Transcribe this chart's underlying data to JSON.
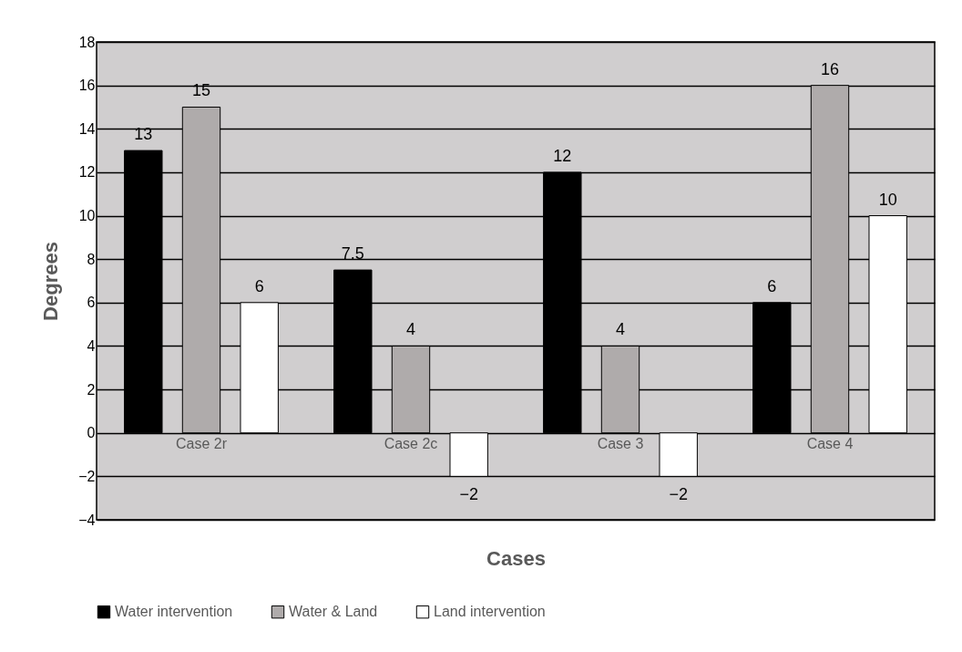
{
  "chart_data": {
    "type": "bar",
    "xlabel": "Cases",
    "ylabel": "Degrees",
    "categories": [
      "Case 2r",
      "Case 2c",
      "Case 3",
      "Case 4"
    ],
    "series": [
      {
        "name": "Water intervention",
        "color": "#000000",
        "values": [
          13,
          7.5,
          12,
          6
        ]
      },
      {
        "name": "Water & Land",
        "color": "#afabab",
        "values": [
          15,
          4,
          4,
          16
        ]
      },
      {
        "name": "Land intervention",
        "color": "#ffffff",
        "values": [
          6,
          -2,
          -2,
          10
        ]
      }
    ],
    "ylim": [
      -4,
      18
    ],
    "yticks": [
      -4,
      -2,
      0,
      2,
      4,
      6,
      8,
      10,
      12,
      14,
      16,
      18
    ],
    "grid": "y",
    "legend": "bottom",
    "data_labels": true
  }
}
